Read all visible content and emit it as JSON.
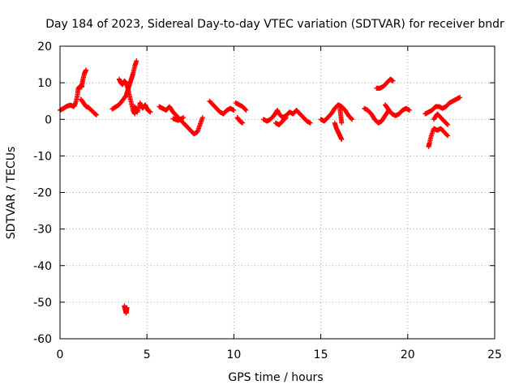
{
  "chart_data": {
    "type": "scatter",
    "title": "Day 184 of 2023, Sidereal Day-to-day VTEC variation (SDTVAR) for receiver bndr",
    "xlabel": "GPS time / hours",
    "ylabel": "SDTVAR / TECUs",
    "xlim": [
      0,
      25
    ],
    "ylim": [
      -60,
      20
    ],
    "x_ticks": [
      0,
      5,
      10,
      15,
      20,
      25
    ],
    "y_ticks": [
      20,
      10,
      0,
      -10,
      -20,
      -30,
      -40,
      -50,
      -60
    ],
    "grid": true,
    "marker": "+",
    "color": "#ff0000",
    "segments": [
      [
        [
          0.0,
          2.5
        ],
        [
          0.2,
          3.0
        ],
        [
          0.4,
          3.6
        ],
        [
          0.6,
          3.9
        ],
        [
          0.8,
          3.5
        ],
        [
          0.9,
          4.5
        ],
        [
          1.0,
          6.5
        ],
        [
          1.05,
          8.5
        ],
        [
          1.15,
          9.0
        ],
        [
          1.25,
          8.8
        ],
        [
          1.3,
          10.5
        ],
        [
          1.4,
          12.5
        ],
        [
          1.5,
          13.5
        ]
      ],
      [
        [
          1.2,
          5.5
        ],
        [
          1.35,
          4.5
        ],
        [
          1.5,
          3.5
        ],
        [
          1.65,
          3.2
        ],
        [
          1.8,
          2.5
        ],
        [
          1.95,
          1.8
        ],
        [
          2.1,
          1.2
        ]
      ],
      [
        [
          3.0,
          2.8
        ],
        [
          3.2,
          3.4
        ],
        [
          3.4,
          4.0
        ],
        [
          3.6,
          5.2
        ],
        [
          3.8,
          6.5
        ],
        [
          3.9,
          8.0
        ],
        [
          4.0,
          9.5
        ],
        [
          4.1,
          11.0
        ],
        [
          4.2,
          12.5
        ],
        [
          4.3,
          14.5
        ],
        [
          4.4,
          16.0
        ]
      ],
      [
        [
          3.4,
          11.0
        ],
        [
          3.5,
          10.0
        ],
        [
          3.6,
          9.5
        ],
        [
          3.7,
          10.5
        ],
        [
          3.8,
          10.0
        ],
        [
          3.9,
          8.5
        ],
        [
          4.0,
          6.5
        ],
        [
          4.1,
          4.5
        ],
        [
          4.2,
          2.5
        ],
        [
          4.3,
          1.5
        ]
      ],
      [
        [
          4.3,
          3.5
        ],
        [
          4.45,
          2.0
        ],
        [
          4.6,
          4.5
        ],
        [
          4.75,
          3.0
        ],
        [
          4.9,
          4.0
        ],
        [
          5.05,
          2.5
        ],
        [
          5.2,
          2.0
        ]
      ],
      [
        [
          3.7,
          -51.0
        ],
        [
          3.75,
          -52.0
        ],
        [
          3.8,
          -53.0
        ],
        [
          3.82,
          -52.5
        ],
        [
          3.85,
          -51.5
        ]
      ],
      [
        [
          5.7,
          3.5
        ],
        [
          5.9,
          3.0
        ],
        [
          6.1,
          2.5
        ],
        [
          6.3,
          3.5
        ],
        [
          6.5,
          2.0
        ],
        [
          6.7,
          1.0
        ],
        [
          6.9,
          0.0
        ],
        [
          7.1,
          -1.0
        ],
        [
          7.3,
          -2.0
        ],
        [
          7.5,
          -3.0
        ],
        [
          7.7,
          -4.0
        ],
        [
          7.9,
          -3.5
        ],
        [
          8.05,
          -1.5
        ],
        [
          8.2,
          0.5
        ]
      ],
      [
        [
          6.5,
          0.2
        ],
        [
          6.8,
          -0.3
        ],
        [
          7.1,
          0.5
        ]
      ],
      [
        [
          8.6,
          5.0
        ],
        [
          8.8,
          4.0
        ],
        [
          9.0,
          3.0
        ],
        [
          9.2,
          2.0
        ],
        [
          9.4,
          1.5
        ],
        [
          9.6,
          2.5
        ],
        [
          9.8,
          3.0
        ],
        [
          10.0,
          2.5
        ]
      ],
      [
        [
          10.1,
          4.5
        ],
        [
          10.3,
          4.0
        ],
        [
          10.5,
          3.5
        ],
        [
          10.7,
          2.5
        ]
      ],
      [
        [
          10.2,
          0.5
        ],
        [
          10.35,
          -0.5
        ],
        [
          10.5,
          -1.0
        ]
      ],
      [
        [
          11.7,
          0.0
        ],
        [
          11.9,
          -0.5
        ],
        [
          12.1,
          0.0
        ],
        [
          12.3,
          1.0
        ],
        [
          12.5,
          2.5
        ],
        [
          12.6,
          1.5
        ],
        [
          12.8,
          0.5
        ],
        [
          13.0,
          1.0
        ],
        [
          13.2,
          2.0
        ],
        [
          13.4,
          1.5
        ],
        [
          13.6,
          2.5
        ],
        [
          13.8,
          1.5
        ],
        [
          14.0,
          0.5
        ],
        [
          14.2,
          -0.5
        ],
        [
          14.4,
          -1.0
        ]
      ],
      [
        [
          12.4,
          -1.0
        ],
        [
          12.6,
          -1.5
        ],
        [
          12.8,
          -0.5
        ],
        [
          13.0,
          0.5
        ]
      ],
      [
        [
          15.0,
          0.0
        ],
        [
          15.2,
          -0.5
        ],
        [
          15.4,
          0.5
        ],
        [
          15.6,
          1.5
        ],
        [
          15.8,
          3.0
        ],
        [
          16.0,
          4.0
        ],
        [
          16.2,
          3.5
        ],
        [
          16.4,
          2.5
        ],
        [
          16.6,
          1.0
        ],
        [
          16.8,
          0.0
        ]
      ],
      [
        [
          15.8,
          -1.0
        ],
        [
          15.9,
          -2.5
        ],
        [
          16.0,
          -3.5
        ],
        [
          16.1,
          -4.5
        ],
        [
          16.2,
          -5.5
        ]
      ],
      [
        [
          16.1,
          3.0
        ],
        [
          16.15,
          1.0
        ],
        [
          16.2,
          -1.0
        ]
      ],
      [
        [
          17.5,
          3.0
        ],
        [
          17.7,
          2.5
        ],
        [
          17.9,
          1.5
        ],
        [
          18.1,
          0.0
        ],
        [
          18.3,
          -1.0
        ],
        [
          18.5,
          -0.5
        ],
        [
          18.7,
          1.0
        ],
        [
          18.9,
          2.5
        ],
        [
          19.1,
          1.5
        ],
        [
          19.3,
          1.0
        ],
        [
          19.5,
          1.5
        ],
        [
          19.7,
          2.5
        ],
        [
          19.9,
          3.0
        ],
        [
          20.1,
          2.5
        ]
      ],
      [
        [
          18.7,
          4.0
        ],
        [
          18.85,
          3.0
        ],
        [
          19.0,
          2.0
        ]
      ],
      [
        [
          18.2,
          8.5
        ],
        [
          18.4,
          8.5
        ],
        [
          18.6,
          9.0
        ],
        [
          18.8,
          10.0
        ],
        [
          19.0,
          11.0
        ],
        [
          19.15,
          10.5
        ]
      ],
      [
        [
          21.0,
          1.5
        ],
        [
          21.2,
          2.0
        ],
        [
          21.4,
          2.5
        ],
        [
          21.6,
          3.5
        ],
        [
          21.8,
          3.5
        ],
        [
          22.0,
          3.0
        ],
        [
          22.2,
          3.5
        ],
        [
          22.4,
          4.5
        ],
        [
          22.6,
          5.0
        ],
        [
          22.8,
          5.5
        ],
        [
          23.0,
          6.0
        ]
      ],
      [
        [
          21.2,
          -7.5
        ],
        [
          21.25,
          -6.5
        ],
        [
          21.35,
          -4.5
        ],
        [
          21.5,
          -2.5
        ],
        [
          21.7,
          -3.0
        ],
        [
          21.9,
          -2.5
        ],
        [
          22.1,
          -3.5
        ],
        [
          22.3,
          -4.5
        ]
      ],
      [
        [
          21.5,
          0.0
        ],
        [
          21.7,
          1.5
        ],
        [
          21.9,
          0.5
        ],
        [
          22.1,
          -0.5
        ],
        [
          22.3,
          -1.5
        ]
      ]
    ]
  }
}
